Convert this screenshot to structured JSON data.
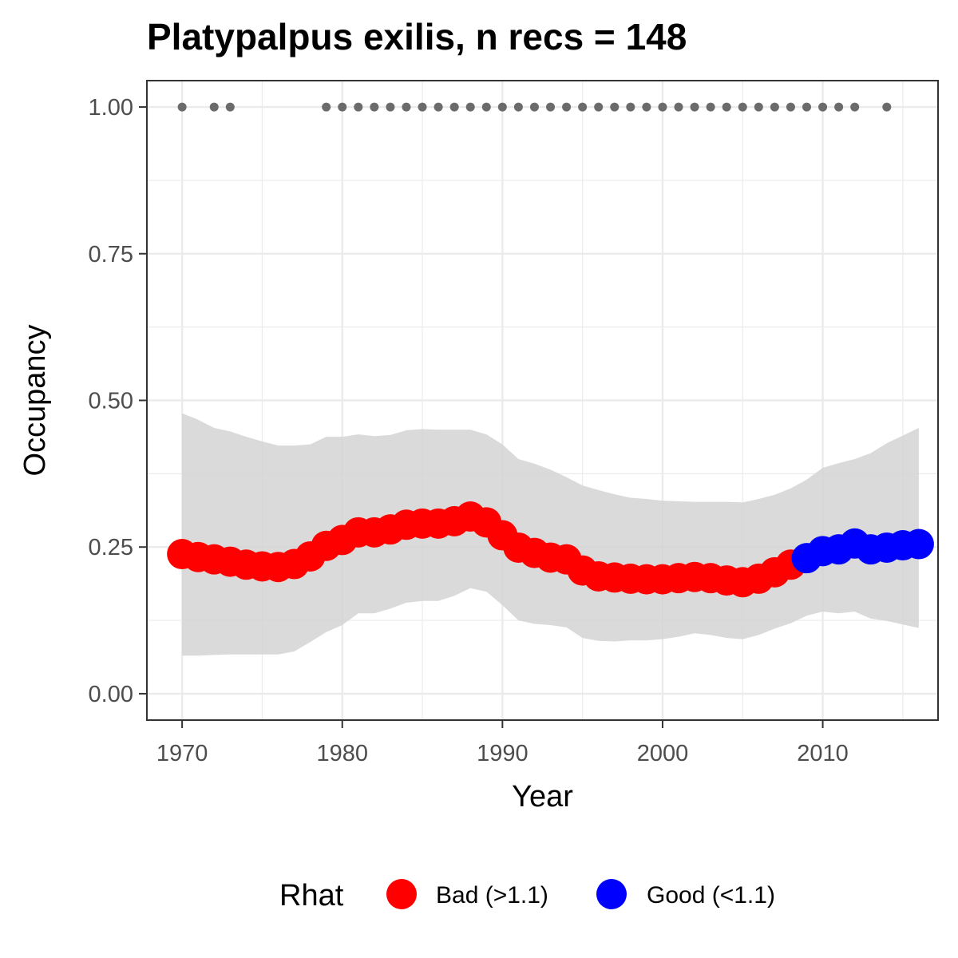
{
  "chart_data": {
    "type": "line",
    "title": "Platypalpus exilis, n recs = 148",
    "xlabel": "Year",
    "ylabel": "Occupancy",
    "xlim": [
      1967.8,
      2017.2
    ],
    "ylim": [
      -0.045,
      1.045
    ],
    "x_ticks": [
      1970,
      1980,
      1990,
      2000,
      2010
    ],
    "y_ticks": [
      0.0,
      0.25,
      0.5,
      0.75,
      1.0
    ],
    "x_tick_labels": [
      "1970",
      "1980",
      "1990",
      "2000",
      "2010"
    ],
    "y_tick_labels": [
      "0.00",
      "0.25",
      "0.50",
      "0.75",
      "1.00"
    ],
    "grid": true,
    "years": [
      1970,
      1971,
      1972,
      1973,
      1974,
      1975,
      1976,
      1977,
      1978,
      1979,
      1980,
      1981,
      1982,
      1983,
      1984,
      1985,
      1986,
      1987,
      1988,
      1989,
      1990,
      1991,
      1992,
      1993,
      1994,
      1995,
      1996,
      1997,
      1998,
      1999,
      2000,
      2001,
      2002,
      2003,
      2004,
      2005,
      2006,
      2007,
      2008,
      2009,
      2010,
      2011,
      2012,
      2013,
      2014,
      2015,
      2016
    ],
    "occupancy": [
      0.238,
      0.233,
      0.229,
      0.225,
      0.22,
      0.217,
      0.216,
      0.221,
      0.234,
      0.252,
      0.262,
      0.275,
      0.275,
      0.28,
      0.288,
      0.29,
      0.29,
      0.294,
      0.302,
      0.292,
      0.27,
      0.249,
      0.24,
      0.232,
      0.229,
      0.21,
      0.2,
      0.198,
      0.196,
      0.195,
      0.195,
      0.197,
      0.199,
      0.197,
      0.193,
      0.19,
      0.196,
      0.207,
      0.22,
      0.231,
      0.243,
      0.246,
      0.256,
      0.246,
      0.249,
      0.253,
      0.255
    ],
    "lower_ci": [
      0.065,
      0.065,
      0.066,
      0.067,
      0.067,
      0.067,
      0.067,
      0.072,
      0.088,
      0.105,
      0.117,
      0.137,
      0.137,
      0.145,
      0.155,
      0.158,
      0.158,
      0.167,
      0.18,
      0.174,
      0.151,
      0.125,
      0.119,
      0.117,
      0.113,
      0.095,
      0.09,
      0.089,
      0.091,
      0.091,
      0.093,
      0.097,
      0.103,
      0.1,
      0.095,
      0.093,
      0.1,
      0.111,
      0.12,
      0.133,
      0.14,
      0.137,
      0.14,
      0.128,
      0.124,
      0.118,
      0.112
    ],
    "upper_ci": [
      0.478,
      0.467,
      0.453,
      0.447,
      0.438,
      0.43,
      0.423,
      0.423,
      0.425,
      0.438,
      0.438,
      0.442,
      0.439,
      0.441,
      0.449,
      0.451,
      0.45,
      0.45,
      0.45,
      0.442,
      0.425,
      0.4,
      0.392,
      0.382,
      0.369,
      0.355,
      0.347,
      0.34,
      0.334,
      0.332,
      0.329,
      0.328,
      0.327,
      0.327,
      0.327,
      0.326,
      0.332,
      0.339,
      0.35,
      0.365,
      0.385,
      0.393,
      0.4,
      0.41,
      0.427,
      0.44,
      0.453
    ],
    "rhat_good": [
      false,
      false,
      false,
      false,
      false,
      false,
      false,
      false,
      false,
      false,
      false,
      false,
      false,
      false,
      false,
      false,
      false,
      false,
      false,
      false,
      false,
      false,
      false,
      false,
      false,
      false,
      false,
      false,
      false,
      false,
      false,
      false,
      false,
      false,
      false,
      false,
      false,
      false,
      false,
      true,
      true,
      true,
      true,
      true,
      true,
      true,
      true
    ],
    "record_years": [
      1970,
      1972,
      1973,
      1979,
      1980,
      1981,
      1982,
      1983,
      1984,
      1985,
      1986,
      1987,
      1988,
      1989,
      1990,
      1991,
      1992,
      1993,
      1994,
      1995,
      1996,
      1997,
      1998,
      1999,
      2000,
      2001,
      2002,
      2003,
      2004,
      2005,
      2006,
      2007,
      2008,
      2009,
      2010,
      2011,
      2012,
      2014
    ],
    "record_value": 1.0,
    "legend": {
      "title": "Rhat",
      "position": "bottom",
      "entries": [
        {
          "label": "Bad (>1.1)",
          "color": "#FF0000"
        },
        {
          "label": "Good (<1.1)",
          "color": "#0000FF"
        }
      ]
    },
    "colors": {
      "bad": "#FF0000",
      "good": "#0000FF",
      "ribbon": "#d4d4d4",
      "records": "#6b6b6b",
      "grid": "#ebebeb",
      "panel_border": "#333333"
    }
  }
}
